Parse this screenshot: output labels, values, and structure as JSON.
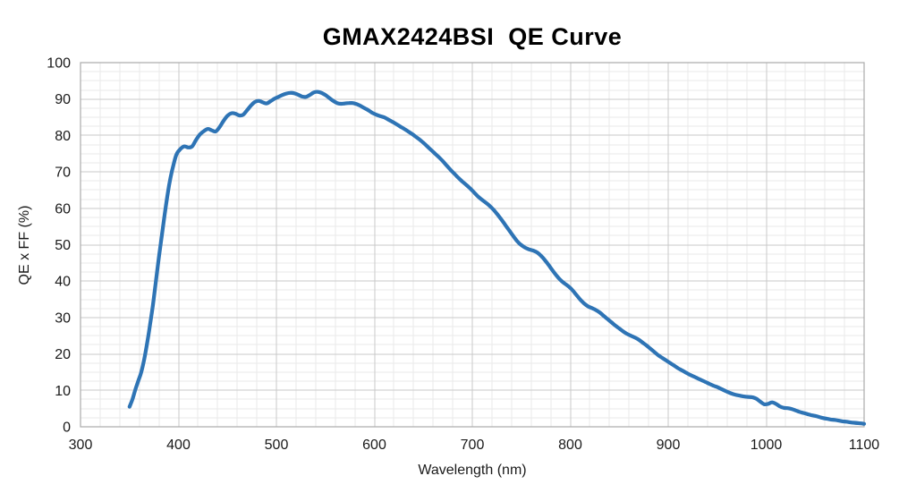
{
  "chart_data": {
    "type": "line",
    "title": "GMAX2424BSI  QE Curve",
    "xlabel": "Wavelength (nm)",
    "ylabel": "QE x FF (%)",
    "xlim": [
      300,
      1100
    ],
    "ylim": [
      0,
      100
    ],
    "x_ticks": [
      300,
      400,
      500,
      600,
      700,
      800,
      900,
      1000,
      1100
    ],
    "y_ticks": [
      0,
      10,
      20,
      30,
      40,
      50,
      60,
      70,
      80,
      90,
      100
    ],
    "x_minor_step": 20,
    "y_minor_step": 2.5,
    "grid": true,
    "legend": "none",
    "line_color": "#2E74B5",
    "major_grid_color": "#C9C9C9",
    "minor_grid_color": "#EAEAEA",
    "border_color": "#ABABAB",
    "text_color": "#1a1a1a",
    "series": [
      {
        "name": "QE x FF",
        "points": [
          [
            350,
            5.5
          ],
          [
            353,
            7.5
          ],
          [
            356,
            10.2
          ],
          [
            359,
            12.6
          ],
          [
            362,
            15
          ],
          [
            365,
            18.5
          ],
          [
            368,
            23
          ],
          [
            371,
            28
          ],
          [
            374,
            33.5
          ],
          [
            377,
            40
          ],
          [
            380,
            46.5
          ],
          [
            383,
            52.5
          ],
          [
            386,
            58.5
          ],
          [
            389,
            64
          ],
          [
            392,
            68.5
          ],
          [
            395,
            72
          ],
          [
            398,
            74.8
          ],
          [
            402,
            76.3
          ],
          [
            406,
            77
          ],
          [
            410,
            76.7
          ],
          [
            414,
            77
          ],
          [
            418,
            78.8
          ],
          [
            422,
            80.3
          ],
          [
            426,
            81.2
          ],
          [
            430,
            81.8
          ],
          [
            434,
            81.4
          ],
          [
            438,
            81.1
          ],
          [
            442,
            82.3
          ],
          [
            446,
            84
          ],
          [
            450,
            85.4
          ],
          [
            454,
            86.1
          ],
          [
            458,
            86
          ],
          [
            462,
            85.5
          ],
          [
            466,
            85.7
          ],
          [
            470,
            86.9
          ],
          [
            474,
            88.2
          ],
          [
            478,
            89.2
          ],
          [
            482,
            89.5
          ],
          [
            486,
            89.1
          ],
          [
            490,
            88.8
          ],
          [
            494,
            89.4
          ],
          [
            498,
            90.1
          ],
          [
            502,
            90.6
          ],
          [
            506,
            91.1
          ],
          [
            510,
            91.5
          ],
          [
            514,
            91.7
          ],
          [
            518,
            91.6
          ],
          [
            522,
            91.2
          ],
          [
            526,
            90.7
          ],
          [
            530,
            90.6
          ],
          [
            534,
            91.1
          ],
          [
            538,
            91.8
          ],
          [
            542,
            92
          ],
          [
            546,
            91.7
          ],
          [
            550,
            91.1
          ],
          [
            554,
            90.3
          ],
          [
            558,
            89.5
          ],
          [
            562,
            88.9
          ],
          [
            566,
            88.7
          ],
          [
            570,
            88.8
          ],
          [
            574,
            88.9
          ],
          [
            578,
            88.9
          ],
          [
            582,
            88.6
          ],
          [
            586,
            88.1
          ],
          [
            590,
            87.5
          ],
          [
            594,
            86.9
          ],
          [
            598,
            86.2
          ],
          [
            602,
            85.7
          ],
          [
            606,
            85.3
          ],
          [
            610,
            85
          ],
          [
            614,
            84.4
          ],
          [
            618,
            83.8
          ],
          [
            622,
            83.2
          ],
          [
            626,
            82.5
          ],
          [
            630,
            81.9
          ],
          [
            634,
            81.2
          ],
          [
            638,
            80.5
          ],
          [
            642,
            79.7
          ],
          [
            646,
            78.9
          ],
          [
            650,
            78
          ],
          [
            654,
            77
          ],
          [
            658,
            76
          ],
          [
            662,
            75
          ],
          [
            666,
            74
          ],
          [
            670,
            72.9
          ],
          [
            674,
            71.7
          ],
          [
            678,
            70.5
          ],
          [
            682,
            69.4
          ],
          [
            686,
            68.3
          ],
          [
            690,
            67.3
          ],
          [
            694,
            66.4
          ],
          [
            698,
            65.4
          ],
          [
            702,
            64.3
          ],
          [
            706,
            63.2
          ],
          [
            710,
            62.3
          ],
          [
            714,
            61.5
          ],
          [
            718,
            60.6
          ],
          [
            722,
            59.5
          ],
          [
            726,
            58.2
          ],
          [
            730,
            56.8
          ],
          [
            734,
            55.3
          ],
          [
            738,
            53.8
          ],
          [
            742,
            52.3
          ],
          [
            746,
            50.9
          ],
          [
            750,
            49.9
          ],
          [
            754,
            49.2
          ],
          [
            758,
            48.7
          ],
          [
            762,
            48.4
          ],
          [
            766,
            47.9
          ],
          [
            770,
            47
          ],
          [
            774,
            45.8
          ],
          [
            778,
            44.4
          ],
          [
            782,
            42.9
          ],
          [
            786,
            41.5
          ],
          [
            790,
            40.3
          ],
          [
            794,
            39.4
          ],
          [
            798,
            38.6
          ],
          [
            802,
            37.6
          ],
          [
            806,
            36.3
          ],
          [
            810,
            35
          ],
          [
            814,
            33.9
          ],
          [
            818,
            33.1
          ],
          [
            822,
            32.6
          ],
          [
            826,
            32.1
          ],
          [
            830,
            31.4
          ],
          [
            834,
            30.5
          ],
          [
            838,
            29.6
          ],
          [
            842,
            28.7
          ],
          [
            846,
            27.8
          ],
          [
            850,
            27
          ],
          [
            854,
            26.2
          ],
          [
            858,
            25.5
          ],
          [
            862,
            25
          ],
          [
            866,
            24.5
          ],
          [
            870,
            23.9
          ],
          [
            874,
            23.1
          ],
          [
            878,
            22.3
          ],
          [
            882,
            21.4
          ],
          [
            886,
            20.5
          ],
          [
            890,
            19.6
          ],
          [
            894,
            18.9
          ],
          [
            898,
            18.2
          ],
          [
            902,
            17.5
          ],
          [
            906,
            16.8
          ],
          [
            910,
            16.1
          ],
          [
            914,
            15.5
          ],
          [
            918,
            14.9
          ],
          [
            922,
            14.3
          ],
          [
            926,
            13.8
          ],
          [
            930,
            13.3
          ],
          [
            934,
            12.8
          ],
          [
            938,
            12.3
          ],
          [
            942,
            11.8
          ],
          [
            946,
            11.3
          ],
          [
            950,
            10.9
          ],
          [
            954,
            10.4
          ],
          [
            958,
            9.9
          ],
          [
            962,
            9.4
          ],
          [
            966,
            9
          ],
          [
            970,
            8.7
          ],
          [
            974,
            8.5
          ],
          [
            978,
            8.3
          ],
          [
            982,
            8.2
          ],
          [
            986,
            8.1
          ],
          [
            990,
            7.7
          ],
          [
            994,
            6.9
          ],
          [
            998,
            6.2
          ],
          [
            1002,
            6.3
          ],
          [
            1006,
            6.7
          ],
          [
            1010,
            6.3
          ],
          [
            1014,
            5.6
          ],
          [
            1018,
            5.2
          ],
          [
            1022,
            5.1
          ],
          [
            1026,
            4.9
          ],
          [
            1030,
            4.5
          ],
          [
            1034,
            4.1
          ],
          [
            1038,
            3.8
          ],
          [
            1042,
            3.5
          ],
          [
            1046,
            3.2
          ],
          [
            1050,
            3
          ],
          [
            1054,
            2.7
          ],
          [
            1058,
            2.4
          ],
          [
            1062,
            2.2
          ],
          [
            1066,
            2
          ],
          [
            1070,
            1.9
          ],
          [
            1074,
            1.7
          ],
          [
            1078,
            1.5
          ],
          [
            1082,
            1.4
          ],
          [
            1086,
            1.2
          ],
          [
            1090,
            1.1
          ],
          [
            1094,
            1
          ],
          [
            1098,
            0.9
          ],
          [
            1100,
            0.8
          ]
        ]
      }
    ]
  }
}
